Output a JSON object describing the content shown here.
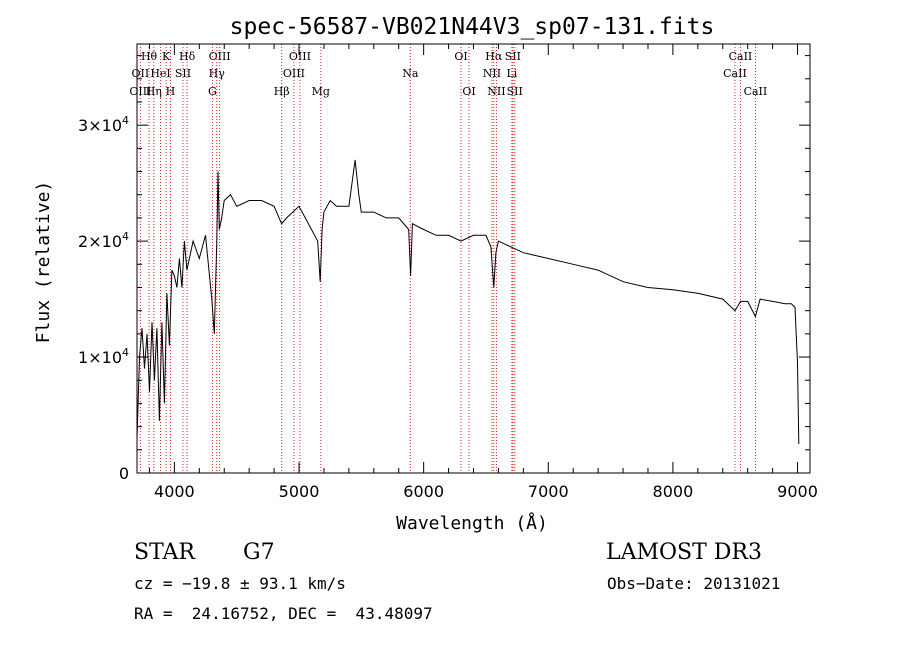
{
  "chart_data": {
    "type": "line",
    "title": "spec-56587-VB021N44V3_sp07-131.fits",
    "xlabel": "Wavelength (Å)",
    "ylabel": "Flux (relative)",
    "xlim": [
      3700,
      9100
    ],
    "ylim": [
      0,
      37000
    ],
    "grid": false,
    "x_ticks": [
      4000,
      5000,
      6000,
      7000,
      8000,
      9000
    ],
    "x_tick_labels": [
      "4000",
      "5000",
      "6000",
      "7000",
      "8000",
      "9000"
    ],
    "x_minor_step": 200,
    "y_ticks": [
      {
        "value": 0,
        "mantissa": "0",
        "exp": ""
      },
      {
        "value": 10000,
        "mantissa": "1×10",
        "exp": "4"
      },
      {
        "value": 20000,
        "mantissa": "2×10",
        "exp": "4"
      },
      {
        "value": 30000,
        "mantissa": "3×10",
        "exp": "4"
      }
    ],
    "y_minor_step": 2000,
    "series": [
      {
        "name": "spectrum",
        "color": "#000000",
        "x": [
          3700,
          3720,
          3740,
          3760,
          3780,
          3800,
          3820,
          3840,
          3860,
          3880,
          3900,
          3920,
          3940,
          3960,
          3980,
          4000,
          4020,
          4040,
          4060,
          4080,
          4100,
          4150,
          4200,
          4250,
          4300,
          4320,
          4340,
          4350,
          4360,
          4380,
          4400,
          4450,
          4500,
          4600,
          4700,
          4800,
          4860,
          4900,
          5000,
          5100,
          5150,
          5170,
          5185,
          5200,
          5250,
          5300,
          5400,
          5450,
          5480,
          5500,
          5600,
          5700,
          5800,
          5880,
          5895,
          5910,
          6000,
          6100,
          6200,
          6300,
          6400,
          6500,
          6540,
          6563,
          6580,
          6600,
          6700,
          6800,
          7000,
          7200,
          7400,
          7600,
          7800,
          8000,
          8200,
          8400,
          8498,
          8542,
          8600,
          8662,
          8700,
          8800,
          8900,
          8950,
          8980,
          9000,
          9010
        ],
        "y": [
          3000,
          10000,
          12500,
          9000,
          12000,
          7000,
          13000,
          8000,
          12500,
          4500,
          13000,
          6000,
          15500,
          11000,
          17500,
          17000,
          16000,
          18500,
          16000,
          20000,
          17500,
          20000,
          18500,
          20500,
          15000,
          12000,
          20000,
          26000,
          21000,
          22000,
          23500,
          24000,
          23000,
          23500,
          23500,
          23000,
          21500,
          22000,
          23000,
          21000,
          20000,
          16500,
          21000,
          22500,
          23500,
          23000,
          23000,
          27000,
          24000,
          22500,
          22500,
          22000,
          22000,
          21000,
          17000,
          21500,
          21000,
          20500,
          20500,
          20000,
          20500,
          20500,
          19500,
          16000,
          19000,
          20000,
          19500,
          19000,
          18500,
          18000,
          17500,
          16500,
          16000,
          15800,
          15500,
          15000,
          14000,
          14800,
          14800,
          13500,
          15000,
          14800,
          14600,
          14600,
          14300,
          9500,
          2500
        ]
      }
    ],
    "line_markers": [
      {
        "label": "Hθ",
        "wave": 3797,
        "row": 1
      },
      {
        "label": "OII",
        "wave": 3727,
        "row": 2
      },
      {
        "label": "OIII",
        "wave": 3727,
        "row": 3
      },
      {
        "label": "HeI",
        "wave": 3889,
        "row": 2
      },
      {
        "label": "Hη",
        "wave": 3835,
        "row": 3
      },
      {
        "label": "K",
        "wave": 3934,
        "row": 1
      },
      {
        "label": "H",
        "wave": 3968,
        "row": 3
      },
      {
        "label": "SII",
        "wave": 4069,
        "row": 2
      },
      {
        "label": "Hδ",
        "wave": 4102,
        "row": 1
      },
      {
        "label": "OIII",
        "wave": 4363,
        "row": 1
      },
      {
        "label": "Hγ",
        "wave": 4340,
        "row": 2
      },
      {
        "label": "G",
        "wave": 4305,
        "row": 3
      },
      {
        "label": "OIII",
        "wave": 5007,
        "row": 1
      },
      {
        "label": "OIII",
        "wave": 4959,
        "row": 2
      },
      {
        "label": "Hβ",
        "wave": 4861,
        "row": 3
      },
      {
        "label": "Mg",
        "wave": 5175,
        "row": 3
      },
      {
        "label": "Na",
        "wave": 5893,
        "row": 2
      },
      {
        "label": "OI",
        "wave": 6300,
        "row": 1
      },
      {
        "label": "OI",
        "wave": 6364,
        "row": 3
      },
      {
        "label": "Hα",
        "wave": 6563,
        "row": 1
      },
      {
        "label": "SII",
        "wave": 6716,
        "row": 1
      },
      {
        "label": "NII",
        "wave": 6548,
        "row": 2
      },
      {
        "label": "Li",
        "wave": 6708,
        "row": 2
      },
      {
        "label": "NII",
        "wave": 6584,
        "row": 3
      },
      {
        "label": "SII",
        "wave": 6731,
        "row": 3
      },
      {
        "label": "CaII",
        "wave": 8542,
        "row": 1
      },
      {
        "label": "CaII",
        "wave": 8498,
        "row": 2
      },
      {
        "label": "CaII",
        "wave": 8662,
        "row": 3
      }
    ]
  },
  "info": {
    "class": "STAR",
    "subclass": "G7",
    "survey": "LAMOST DR3",
    "redshift_text": "cz = −19.8 ± 93.1 km/s",
    "obs_date_text": "Obs−Date: 20131021",
    "coords_text": "RA =  24.16752, DEC =  43.48097"
  }
}
